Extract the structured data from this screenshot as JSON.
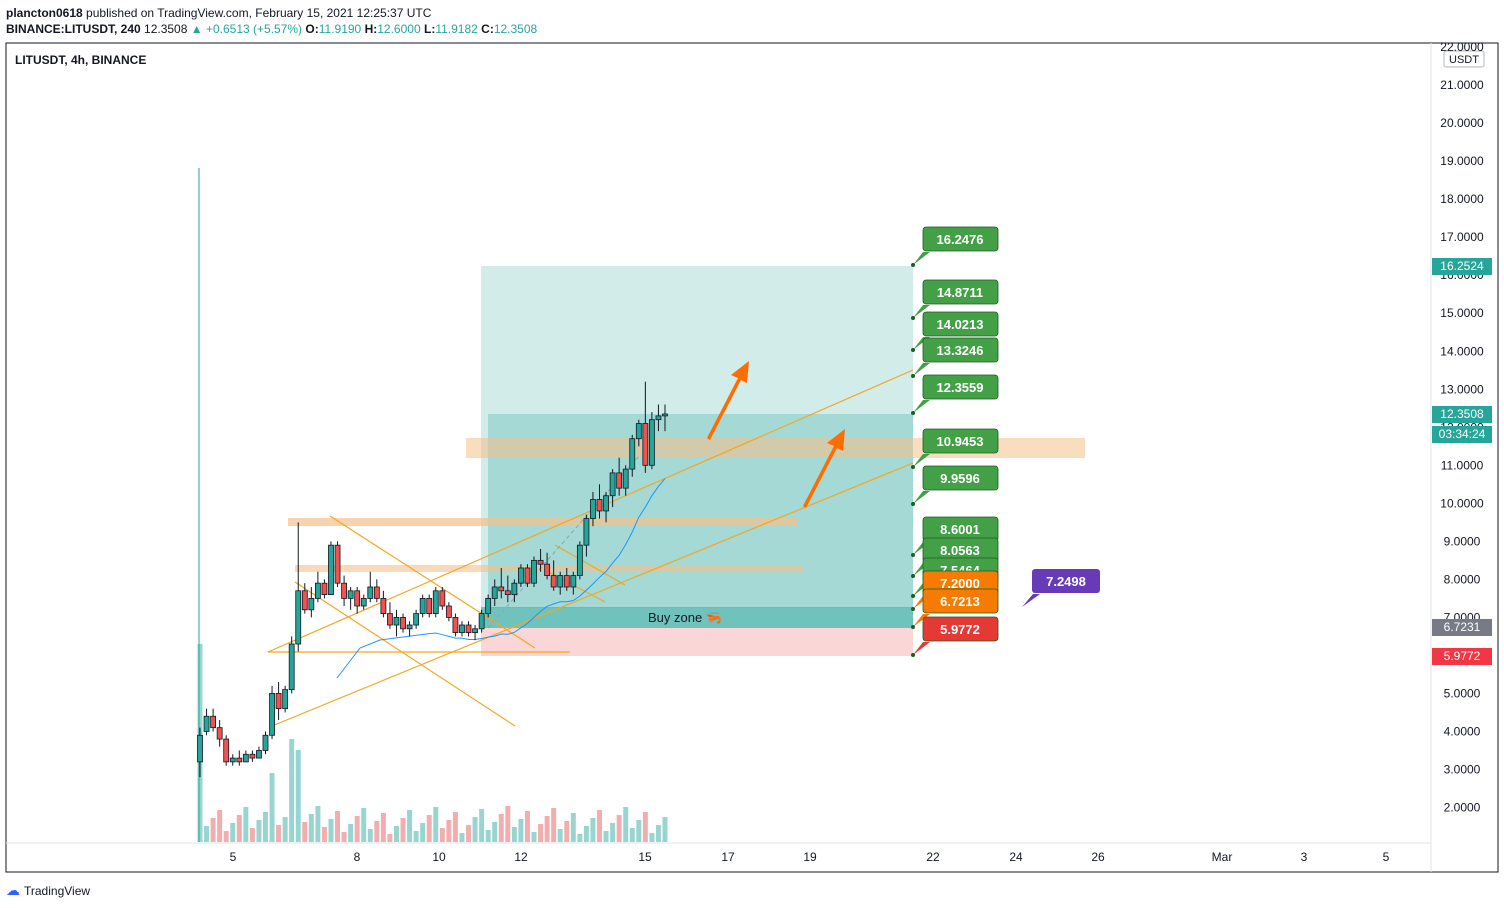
{
  "header": {
    "publisher": "plancton0618",
    "published_text": "published on TradingView.com, February 15, 2021 12:25:37 UTC",
    "symbol_line": "BINANCE:LITUSDT, 240",
    "last": "12.3508",
    "change": "▲ +0.6513 (+5.57%)",
    "open_label": "O:",
    "open": "11.9190",
    "high_label": "H:",
    "high": "12.6000",
    "low_label": "L:",
    "low": "11.9182",
    "close_label": "C:",
    "close": "12.3508"
  },
  "legend": {
    "symbol": "LITUSDT, 4h, BINANCE"
  },
  "axis_unit": "USDT",
  "footer": {
    "brand": "TradingView"
  },
  "chart_data": {
    "type": "candlestick",
    "y_ticks": [
      "2.0000",
      "3.0000",
      "4.0000",
      "5.0000",
      "6.0000",
      "7.0000",
      "8.0000",
      "9.0000",
      "10.0000",
      "11.0000",
      "12.0000",
      "13.0000",
      "14.0000",
      "15.0000",
      "16.0000",
      "17.0000",
      "18.0000",
      "19.0000",
      "20.0000",
      "21.0000",
      "22.0000"
    ],
    "x_ticks": [
      "5",
      "8",
      "10",
      "12",
      "15",
      "17",
      "19",
      "22",
      "24",
      "26",
      "Mar",
      "3",
      "5"
    ],
    "price_badges": [
      {
        "label": "16.2524",
        "value": 16.2524,
        "color": "#26a69a"
      },
      {
        "label": "12.3508",
        "value": 12.3508,
        "color": "#26a69a"
      },
      {
        "label": "03:34:24",
        "value": 11.86,
        "color": "#26a69a"
      },
      {
        "label": "6.7231",
        "value": 6.7231,
        "color": "#787b86"
      },
      {
        "label": "5.9772",
        "value": 5.9772,
        "color": "#f23645"
      }
    ],
    "targets": [
      {
        "label": "16.2476",
        "value": 16.2476,
        "color": "#43a047"
      },
      {
        "label": "14.8711",
        "value": 14.8711,
        "color": "#43a047"
      },
      {
        "label": "14.0213",
        "value": 14.0213,
        "color": "#43a047"
      },
      {
        "label": "13.3246",
        "value": 13.3246,
        "color": "#43a047"
      },
      {
        "label": "12.3559",
        "value": 12.3559,
        "color": "#43a047"
      },
      {
        "label": "10.9453",
        "value": 10.9453,
        "color": "#43a047"
      },
      {
        "label": "9.9596",
        "value": 9.9596,
        "color": "#43a047"
      },
      {
        "label": "8.6001",
        "value": 8.6001,
        "color": "#43a047"
      },
      {
        "label": "8.0563",
        "value": 8.0563,
        "color": "#43a047"
      },
      {
        "label": "7.5464",
        "value": 7.5464,
        "color": "#43a047"
      },
      {
        "label": "7.2000",
        "value": 7.2,
        "color": "#f57c00"
      },
      {
        "label": "6.7213",
        "value": 6.7213,
        "color": "#f57c00"
      },
      {
        "label": "5.9772",
        "value": 5.9772,
        "color": "#e53935"
      }
    ],
    "extra_label": {
      "label": "7.2498",
      "value": 7.2498,
      "color": "#673ab7"
    },
    "buy_zone_label": "Buy zone 🦐",
    "candles": [
      [
        3.2,
        4.1,
        2.8,
        3.9
      ],
      [
        4.0,
        4.6,
        3.9,
        4.4
      ],
      [
        4.4,
        4.6,
        4.0,
        4.1
      ],
      [
        4.1,
        4.3,
        3.6,
        3.8
      ],
      [
        3.8,
        3.9,
        3.1,
        3.2
      ],
      [
        3.2,
        3.4,
        3.1,
        3.3
      ],
      [
        3.3,
        3.5,
        3.1,
        3.2
      ],
      [
        3.2,
        3.5,
        3.2,
        3.4
      ],
      [
        3.4,
        3.5,
        3.2,
        3.3
      ],
      [
        3.3,
        3.6,
        3.3,
        3.5
      ],
      [
        3.5,
        4.0,
        3.4,
        3.9
      ],
      [
        3.9,
        5.2,
        3.8,
        5.0
      ],
      [
        5.0,
        5.3,
        4.3,
        4.6
      ],
      [
        4.6,
        5.2,
        4.5,
        5.1
      ],
      [
        5.1,
        6.5,
        5.0,
        6.3
      ],
      [
        6.3,
        9.5,
        6.1,
        7.7
      ],
      [
        7.7,
        7.9,
        7.1,
        7.2
      ],
      [
        7.2,
        7.8,
        7.0,
        7.5
      ],
      [
        7.5,
        8.2,
        7.4,
        7.9
      ],
      [
        7.9,
        8.0,
        7.5,
        7.6
      ],
      [
        7.6,
        9.0,
        7.6,
        8.9
      ],
      [
        8.9,
        9.0,
        7.8,
        7.9
      ],
      [
        7.9,
        8.1,
        7.3,
        7.5
      ],
      [
        7.5,
        7.8,
        7.2,
        7.7
      ],
      [
        7.7,
        7.8,
        7.1,
        7.3
      ],
      [
        7.3,
        7.6,
        7.2,
        7.5
      ],
      [
        7.5,
        8.2,
        7.4,
        7.8
      ],
      [
        7.8,
        8.0,
        7.4,
        7.5
      ],
      [
        7.5,
        7.7,
        7.0,
        7.1
      ],
      [
        7.1,
        7.4,
        6.7,
        6.8
      ],
      [
        6.8,
        7.2,
        6.5,
        7.0
      ],
      [
        7.0,
        7.1,
        6.6,
        6.7
      ],
      [
        6.7,
        6.9,
        6.5,
        6.8
      ],
      [
        6.8,
        7.2,
        6.7,
        7.1
      ],
      [
        7.1,
        7.6,
        7.0,
        7.5
      ],
      [
        7.5,
        7.6,
        7.0,
        7.1
      ],
      [
        7.1,
        7.8,
        7.0,
        7.7
      ],
      [
        7.7,
        7.8,
        7.2,
        7.3
      ],
      [
        7.3,
        7.4,
        6.9,
        7.0
      ],
      [
        7.0,
        7.1,
        6.5,
        6.6
      ],
      [
        6.6,
        6.9,
        6.5,
        6.8
      ],
      [
        6.8,
        6.9,
        6.5,
        6.6
      ],
      [
        6.6,
        6.8,
        6.4,
        6.7
      ],
      [
        6.7,
        7.2,
        6.6,
        7.1
      ],
      [
        7.1,
        7.6,
        7.0,
        7.5
      ],
      [
        7.5,
        8.0,
        7.3,
        7.8
      ],
      [
        7.8,
        8.3,
        7.5,
        7.7
      ],
      [
        7.7,
        8.1,
        7.4,
        7.6
      ],
      [
        7.6,
        8.0,
        7.4,
        7.9
      ],
      [
        7.9,
        8.4,
        7.8,
        8.3
      ],
      [
        8.3,
        8.4,
        7.8,
        7.9
      ],
      [
        7.9,
        8.6,
        7.8,
        8.5
      ],
      [
        8.5,
        8.8,
        8.2,
        8.4
      ],
      [
        8.4,
        8.7,
        8.0,
        8.1
      ],
      [
        8.1,
        8.5,
        7.7,
        7.8
      ],
      [
        7.8,
        8.2,
        7.6,
        8.1
      ],
      [
        8.1,
        8.3,
        7.7,
        7.8
      ],
      [
        7.8,
        8.2,
        7.6,
        8.1
      ],
      [
        8.1,
        9.0,
        8.0,
        8.9
      ],
      [
        8.9,
        9.7,
        8.6,
        9.6
      ],
      [
        9.6,
        10.3,
        9.4,
        10.1
      ],
      [
        10.1,
        10.5,
        9.6,
        9.8
      ],
      [
        9.8,
        10.3,
        9.5,
        10.2
      ],
      [
        10.2,
        10.9,
        9.9,
        10.8
      ],
      [
        10.8,
        11.2,
        10.2,
        10.4
      ],
      [
        10.4,
        11.0,
        10.2,
        10.9
      ],
      [
        10.9,
        11.8,
        10.7,
        11.7
      ],
      [
        11.7,
        12.2,
        11.5,
        12.1
      ],
      [
        12.1,
        13.2,
        10.8,
        11.0
      ],
      [
        11.0,
        12.4,
        10.9,
        12.2
      ],
      [
        12.2,
        12.6,
        11.9,
        12.3
      ],
      [
        12.3,
        12.6,
        11.9,
        12.35
      ]
    ]
  }
}
